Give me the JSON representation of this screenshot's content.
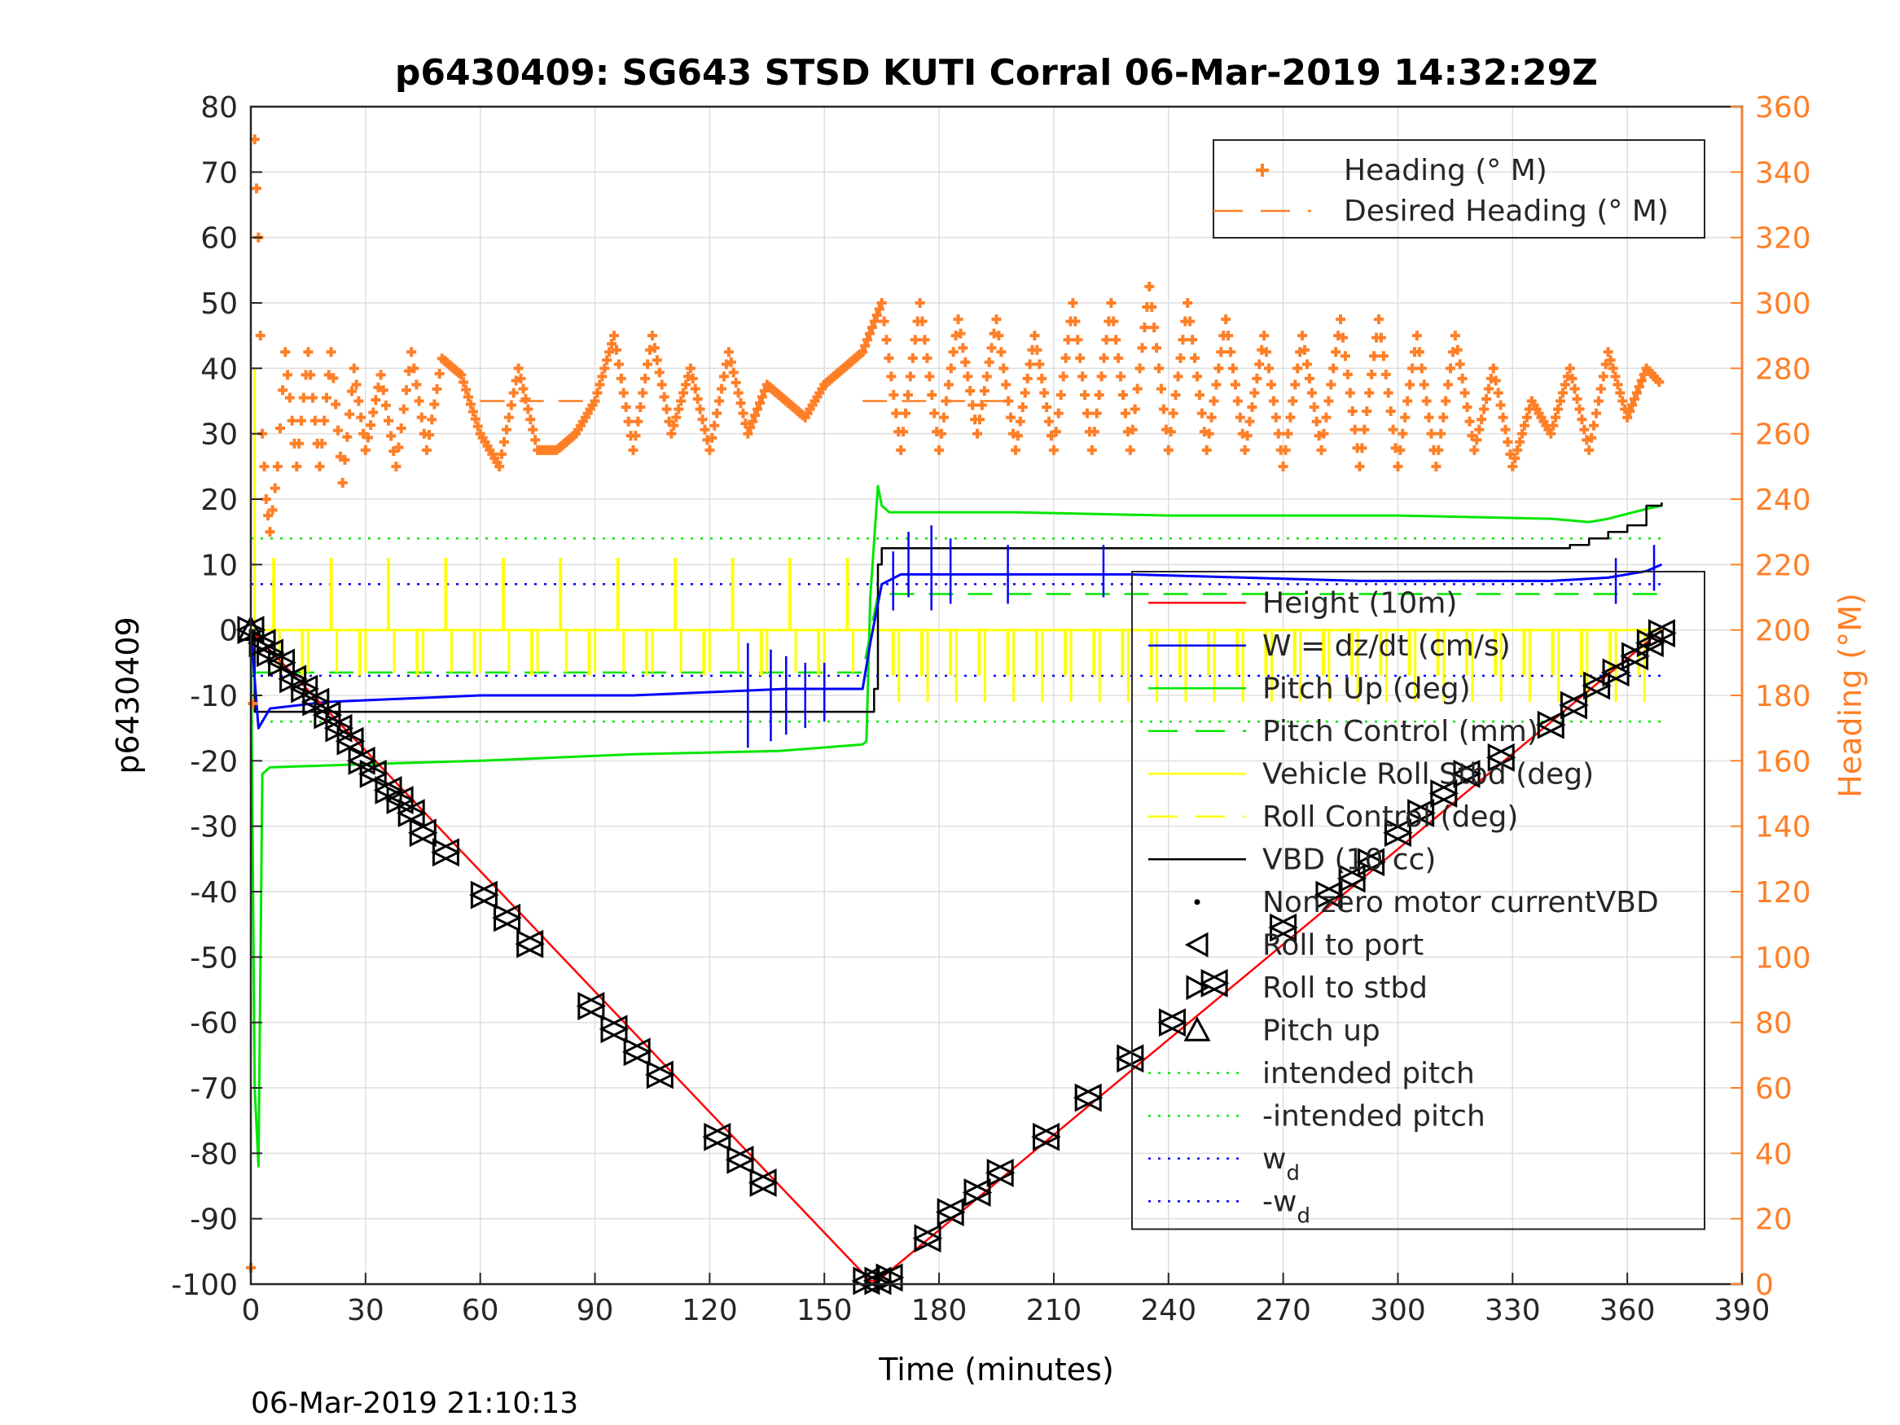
{
  "chart_data": {
    "type": "line",
    "title": "p6430409: SG643 STSD KUTI Corral 06-Mar-2019 14:32:29Z",
    "xlabel": "Time (minutes)",
    "ylabel_left": "p6430409",
    "ylabel_right": "Heading (°M)",
    "xlim": [
      0,
      390
    ],
    "ylim_left": [
      -100,
      80
    ],
    "ylim_right": [
      0,
      360
    ],
    "x_ticks": [
      0,
      30,
      60,
      90,
      120,
      150,
      180,
      210,
      240,
      270,
      300,
      330,
      360,
      390
    ],
    "y_ticks_left": [
      -100,
      -90,
      -80,
      -70,
      -60,
      -50,
      -40,
      -30,
      -20,
      -10,
      0,
      10,
      20,
      30,
      40,
      50,
      60,
      70,
      80
    ],
    "y_ticks_right": [
      0,
      20,
      40,
      60,
      80,
      100,
      120,
      140,
      160,
      180,
      200,
      220,
      240,
      260,
      280,
      300,
      320,
      340,
      360
    ],
    "grid": true,
    "footer": "06-Mar-2019 21:10:13",
    "colors": {
      "heading": "#ff7f27",
      "height": "#ff0000",
      "w": "#0000ff",
      "pitch": "#00e600",
      "roll": "#ffff00",
      "vbd": "#000000",
      "right_axis": "#ff7f27"
    },
    "legend_right_axis": {
      "placement": "top-right",
      "entries": [
        {
          "label": "Heading (° M)",
          "style": "plus",
          "color": "#ff7f27"
        },
        {
          "label": "Desired Heading (° M)",
          "style": "dashed",
          "color": "#ff7f27"
        }
      ]
    },
    "legend_left_axis": {
      "placement": "right",
      "entries": [
        {
          "label": "Height (10m)",
          "style": "solid",
          "color": "#ff0000"
        },
        {
          "label": "W = dz/dt (cm/s)",
          "style": "solid",
          "color": "#0000ff"
        },
        {
          "label": "Pitch Up (deg)",
          "style": "solid",
          "color": "#00e600"
        },
        {
          "label": "Pitch Control (mm)",
          "style": "dashed",
          "color": "#00e600"
        },
        {
          "label": "Vehicle Roll Stbd (deg)",
          "style": "solid",
          "color": "#ffff00"
        },
        {
          "label": "Roll Control (deg)",
          "style": "dashed",
          "color": "#ffff00"
        },
        {
          "label": "VBD (10 cc)",
          "style": "solid",
          "color": "#000000"
        },
        {
          "label": "Nonzero motor currentVBD",
          "style": "dot",
          "color": "#000000"
        },
        {
          "label": "Roll to port",
          "style": "tri-left",
          "color": "#000000"
        },
        {
          "label": "Roll to stbd",
          "style": "tri-right",
          "color": "#000000"
        },
        {
          "label": "Pitch up",
          "style": "tri-up",
          "color": "#000000"
        },
        {
          "label": "intended pitch",
          "style": "dotted",
          "color": "#00e600"
        },
        {
          "label": "-intended pitch",
          "style": "dotted",
          "color": "#00e600"
        },
        {
          "label": "w",
          "sub": "d",
          "style": "dotted",
          "color": "#0000ff"
        },
        {
          "label": "-w",
          "sub": "d",
          "style": "dotted",
          "color": "#0000ff"
        }
      ]
    },
    "series": [
      {
        "name": "Height (10m)",
        "axis": "left",
        "x": [
          0,
          162,
          164,
          369
        ],
        "y": [
          0,
          -99.5,
          -99.5,
          0
        ]
      },
      {
        "name": "W = dz/dt (cm/s)",
        "axis": "left",
        "x": [
          0,
          2,
          5,
          20,
          40,
          60,
          80,
          100,
          120,
          140,
          160,
          162,
          165,
          170,
          200,
          230,
          260,
          290,
          320,
          340,
          355,
          365,
          369
        ],
        "y": [
          0,
          -15,
          -12,
          -11,
          -10.5,
          -10,
          -10,
          -10,
          -9.5,
          -9,
          -9,
          -2,
          7,
          8.5,
          8.5,
          8.5,
          8,
          7.5,
          7.5,
          7.5,
          8,
          9,
          10
        ]
      },
      {
        "name": "Pitch Up (deg)",
        "axis": "left",
        "x": [
          0,
          1,
          2,
          3,
          5,
          30,
          60,
          100,
          138,
          160,
          161,
          162,
          164,
          165,
          167,
          200,
          240,
          300,
          340,
          350,
          355,
          365,
          369
        ],
        "y": [
          0,
          -70,
          -82,
          -22,
          -21,
          -20.5,
          -20,
          -19,
          -18.5,
          -17.5,
          -17,
          5,
          22,
          19,
          18,
          18,
          17.5,
          17.5,
          17,
          16.5,
          17,
          18.5,
          19
        ]
      },
      {
        "name": "Pitch Control (mm)",
        "axis": "left",
        "x": [
          0,
          160,
          164,
          369
        ],
        "y": [
          -6.5,
          -6.5,
          5.5,
          5.5
        ]
      },
      {
        "name": "Vehicle Roll Stbd (deg)",
        "axis": "left",
        "x": [
          0,
          369
        ],
        "y": [
          0,
          0
        ]
      },
      {
        "name": "VBD (10 cc)",
        "axis": "left",
        "x": [
          0,
          1,
          162,
          163,
          164,
          165,
          340,
          345,
          350,
          355,
          360,
          365,
          369
        ],
        "y": [
          0,
          -12.5,
          -12.5,
          -9,
          10,
          12.5,
          12.5,
          13,
          14,
          15,
          16,
          19,
          19.5
        ]
      },
      {
        "name": "intended pitch",
        "axis": "left",
        "x": [
          0,
          369
        ],
        "y": [
          14,
          14
        ]
      },
      {
        "name": "-intended pitch",
        "axis": "left",
        "x": [
          0,
          369
        ],
        "y": [
          -14,
          -14
        ]
      },
      {
        "name": "w_d",
        "axis": "left",
        "x": [
          0,
          369
        ],
        "y": [
          7,
          7
        ]
      },
      {
        "name": "-w_d",
        "axis": "left",
        "x": [
          0,
          369
        ],
        "y": [
          -7,
          -7
        ]
      },
      {
        "name": "Heading (° M)",
        "axis": "right",
        "x": [
          0,
          1,
          2,
          3,
          4,
          5,
          7,
          9,
          12,
          15,
          18,
          21,
          24,
          27,
          30,
          34,
          38,
          42,
          46,
          50,
          55,
          60,
          65,
          70,
          75,
          80,
          85,
          90,
          95,
          100,
          105,
          110,
          115,
          120,
          125,
          130,
          135,
          140,
          145,
          150,
          155,
          160,
          165,
          170,
          175,
          180,
          185,
          190,
          195,
          200,
          205,
          210,
          215,
          220,
          225,
          230,
          235,
          240,
          245,
          250,
          255,
          260,
          265,
          270,
          275,
          280,
          285,
          290,
          295,
          300,
          305,
          310,
          315,
          320,
          325,
          330,
          335,
          340,
          345,
          350,
          355,
          360,
          365,
          369
        ],
        "y": [
          5,
          350,
          320,
          260,
          240,
          230,
          250,
          285,
          250,
          285,
          250,
          285,
          245,
          280,
          255,
          278,
          250,
          285,
          255,
          283,
          278,
          260,
          250,
          280,
          255,
          255,
          260,
          270,
          290,
          255,
          290,
          260,
          280,
          255,
          285,
          260,
          275,
          270,
          265,
          275,
          280,
          285,
          300,
          255,
          300,
          255,
          295,
          260,
          295,
          255,
          290,
          255,
          300,
          255,
          300,
          255,
          305,
          255,
          300,
          255,
          295,
          255,
          290,
          250,
          290,
          255,
          295,
          250,
          295,
          250,
          290,
          250,
          290,
          255,
          280,
          250,
          270,
          260,
          280,
          255,
          285,
          265,
          280,
          275
        ]
      },
      {
        "name": "Desired Heading (° M)",
        "axis": "right",
        "x": [
          60,
          90,
          160,
          200
        ],
        "y": [
          270,
          270,
          270,
          270
        ]
      }
    ],
    "roll_markers": {
      "x": [
        0,
        3,
        5,
        8,
        11,
        14,
        17,
        20,
        23,
        26,
        29,
        32,
        36,
        39,
        42,
        45,
        51,
        61,
        67,
        73,
        89,
        95,
        101,
        107,
        122,
        128,
        134,
        161,
        164,
        167,
        177,
        183,
        190,
        196,
        208,
        219,
        230,
        241,
        252,
        270,
        282,
        288,
        293,
        300,
        306,
        312,
        318,
        327,
        340,
        346,
        352,
        357,
        362,
        366,
        369
      ],
      "y": [
        0,
        -2,
        -3.5,
        -5,
        -7.5,
        -9,
        -11,
        -13,
        -15,
        -17,
        -20,
        -22,
        -24.5,
        -26,
        -28,
        -31,
        -34,
        -40.5,
        -44,
        -48,
        -57.5,
        -61,
        -64.5,
        -68,
        -77.5,
        -81,
        -84.5,
        -99.5,
        -99.5,
        -99,
        -93,
        -89,
        -86,
        -83,
        -77.5,
        -71.5,
        -65.5,
        -60,
        -54,
        -45.5,
        -40.5,
        -38,
        -35.5,
        -31,
        -28,
        -25,
        -22,
        -19.5,
        -14.5,
        -11.5,
        -8.5,
        -6.5,
        -4,
        -2,
        -0.5
      ]
    }
  }
}
